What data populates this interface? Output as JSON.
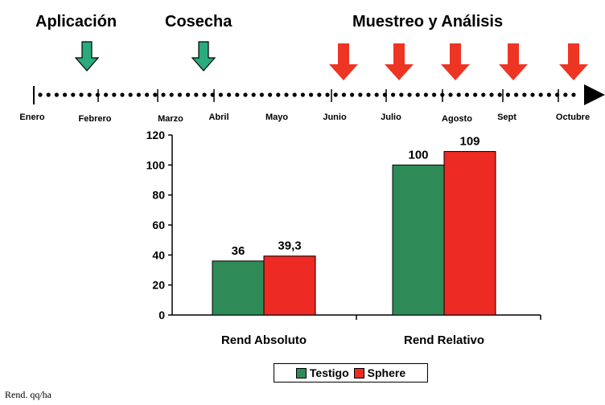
{
  "timeline": {
    "phases": [
      {
        "label": "Aplicación",
        "arrow_color": "#2aab7e"
      },
      {
        "label": "Cosecha",
        "arrow_color": "#2aab7e"
      },
      {
        "label": "Muestreo y Análisis",
        "arrow_color": "#ee3524"
      }
    ],
    "months": [
      "Enero",
      "Febrero",
      "Marzo",
      "Abril",
      "Mayo",
      "Junio",
      "Julio",
      "Agosto",
      "Sept",
      "Octubre"
    ]
  },
  "chart_data": {
    "type": "bar",
    "categories": [
      "Rend Absoluto",
      "Rend Relativo"
    ],
    "series": [
      {
        "name": "Testigo",
        "color": "#2e8b57",
        "values": [
          36,
          100
        ],
        "labels": [
          "36",
          "100"
        ]
      },
      {
        "name": "Sphere",
        "color": "#ee2a24",
        "values": [
          39.3,
          109
        ],
        "labels": [
          "39,3",
          "109"
        ]
      }
    ],
    "ylim": [
      0,
      120
    ],
    "yticks": [
      "0",
      "20",
      "40",
      "60",
      "80",
      "100",
      "120"
    ],
    "grid": false,
    "legend_position": "bottom-center"
  },
  "footnote": "Rend. qq/ha"
}
